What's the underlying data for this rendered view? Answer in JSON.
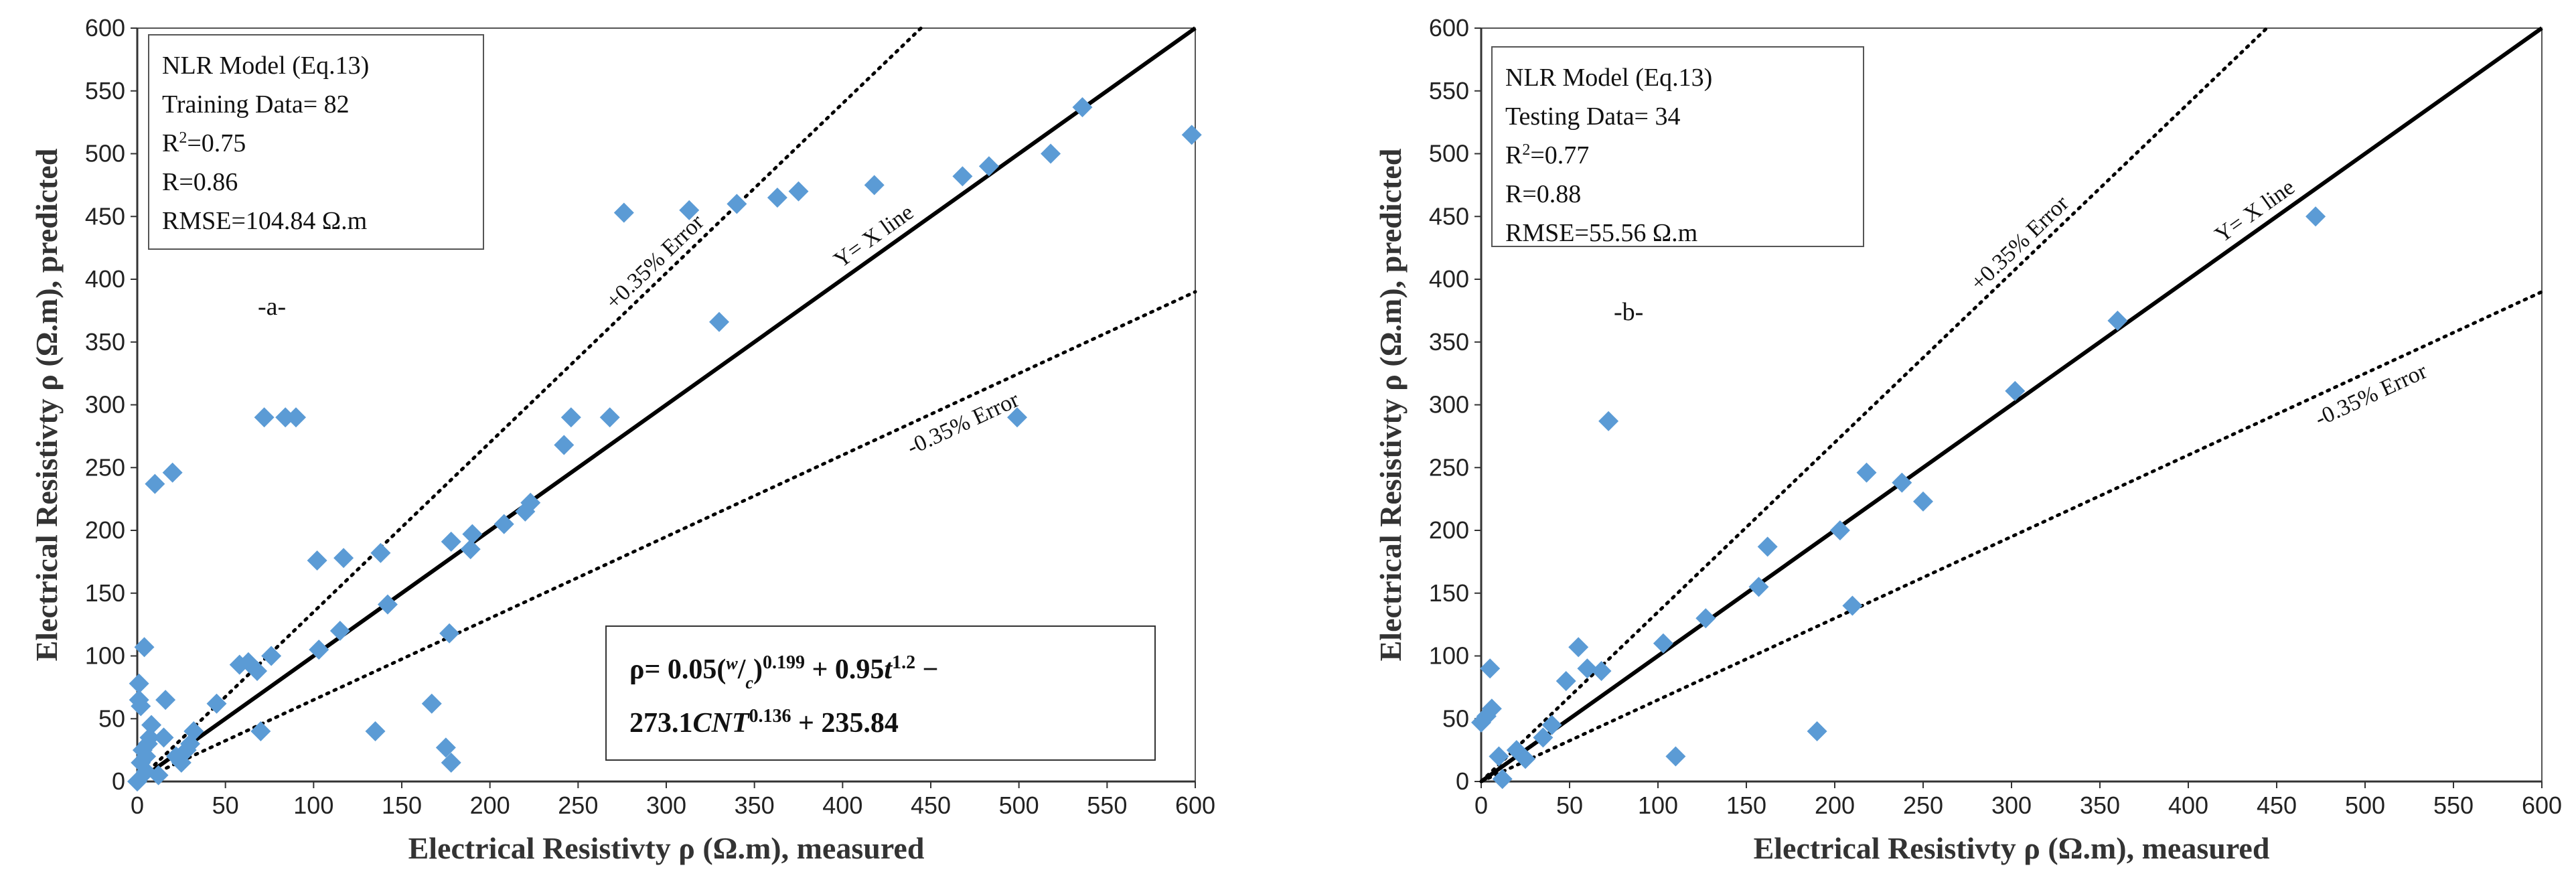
{
  "chart_data": [
    {
      "type": "scatter",
      "panel_label": "-a-",
      "xlabel": "Electrical Resistivty ρ (Ω.m), measured",
      "ylabel": "Electrical Resistivty ρ (Ω.m), predicted",
      "xlim": [
        0,
        600
      ],
      "ylim": [
        0,
        600
      ],
      "ticks": [
        "0",
        "50",
        "100",
        "150",
        "200",
        "250",
        "300",
        "350",
        "400",
        "450",
        "500",
        "550",
        "600"
      ],
      "marker_color": "#5b9bd5",
      "stats": [
        "NLR Model (Eq.13)",
        "Training Data= 82",
        "R²=0.75",
        "R=0.86",
        "RMSE=104.84 Ω.m"
      ],
      "lines": {
        "yx_label": "Y= X line",
        "upper_label": "+0.35% Error",
        "lower_label": "-0.35% Error",
        "upper_slope": 1.35,
        "lower_slope": 0.65
      },
      "formula": {
        "line1": "ρ= 0.05(w/c)^0.199 + 0.95t^1.2 −",
        "line2": "273.1CNT^0.136 + 235.84"
      },
      "points": [
        [
          0,
          0
        ],
        [
          1,
          65
        ],
        [
          1,
          78
        ],
        [
          2,
          60
        ],
        [
          2,
          15
        ],
        [
          3,
          25
        ],
        [
          4,
          107
        ],
        [
          5,
          8
        ],
        [
          5,
          20
        ],
        [
          6,
          30
        ],
        [
          7,
          35
        ],
        [
          8,
          45
        ],
        [
          10,
          237
        ],
        [
          12,
          5
        ],
        [
          15,
          35
        ],
        [
          16,
          65
        ],
        [
          20,
          246
        ],
        [
          22,
          20
        ],
        [
          25,
          15
        ],
        [
          28,
          25
        ],
        [
          30,
          30
        ],
        [
          32,
          40
        ],
        [
          45,
          62
        ],
        [
          58,
          93
        ],
        [
          63,
          95
        ],
        [
          68,
          88
        ],
        [
          70,
          40
        ],
        [
          72,
          290
        ],
        [
          76,
          100
        ],
        [
          84,
          290
        ],
        [
          90,
          290
        ],
        [
          102,
          176
        ],
        [
          103,
          105
        ],
        [
          115,
          120
        ],
        [
          117,
          178
        ],
        [
          135,
          40
        ],
        [
          138,
          182
        ],
        [
          142,
          141
        ],
        [
          167,
          62
        ],
        [
          175,
          27
        ],
        [
          177,
          118
        ],
        [
          178,
          191
        ],
        [
          178,
          15
        ],
        [
          189,
          185
        ],
        [
          190,
          197
        ],
        [
          208,
          205
        ],
        [
          220,
          215
        ],
        [
          223,
          222
        ],
        [
          242,
          268
        ],
        [
          246,
          290
        ],
        [
          268,
          290
        ],
        [
          276,
          453
        ],
        [
          313,
          455
        ],
        [
          330,
          366
        ],
        [
          340,
          460
        ],
        [
          363,
          465
        ],
        [
          375,
          470
        ],
        [
          418,
          475
        ],
        [
          468,
          482
        ],
        [
          483,
          490
        ],
        [
          499,
          290
        ],
        [
          518,
          500
        ],
        [
          536,
          537
        ],
        [
          598,
          515
        ]
      ]
    },
    {
      "type": "scatter",
      "panel_label": "-b-",
      "xlabel": "Electrical Resistivty ρ (Ω.m), measured",
      "ylabel": "Electrical Resistivty ρ (Ω.m), predicted",
      "xlim": [
        0,
        600
      ],
      "ylim": [
        0,
        600
      ],
      "ticks": [
        "0",
        "50",
        "100",
        "150",
        "200",
        "250",
        "300",
        "350",
        "400",
        "450",
        "500",
        "550",
        "600"
      ],
      "marker_color": "#5b9bd5",
      "stats": [
        "NLR Model (Eq.13)",
        "Testing Data= 34",
        "R²=0.77",
        "R=0.88",
        "RMSE=55.56 Ω.m"
      ],
      "lines": {
        "yx_label": "Y= X line",
        "upper_label": "+0.35% Error",
        "lower_label": "-0.35% Error",
        "upper_slope": 1.35,
        "lower_slope": 0.65
      },
      "points": [
        [
          0,
          47
        ],
        [
          3,
          52
        ],
        [
          5,
          90
        ],
        [
          6,
          58
        ],
        [
          10,
          20
        ],
        [
          12,
          2
        ],
        [
          20,
          25
        ],
        [
          25,
          18
        ],
        [
          35,
          35
        ],
        [
          40,
          45
        ],
        [
          48,
          80
        ],
        [
          55,
          107
        ],
        [
          60,
          90
        ],
        [
          68,
          88
        ],
        [
          72,
          287
        ],
        [
          103,
          110
        ],
        [
          110,
          20
        ],
        [
          127,
          130
        ],
        [
          157,
          155
        ],
        [
          162,
          187
        ],
        [
          190,
          40
        ],
        [
          203,
          200
        ],
        [
          210,
          140
        ],
        [
          218,
          246
        ],
        [
          238,
          238
        ],
        [
          250,
          223
        ],
        [
          302,
          311
        ],
        [
          360,
          367
        ],
        [
          472,
          450
        ]
      ]
    }
  ]
}
